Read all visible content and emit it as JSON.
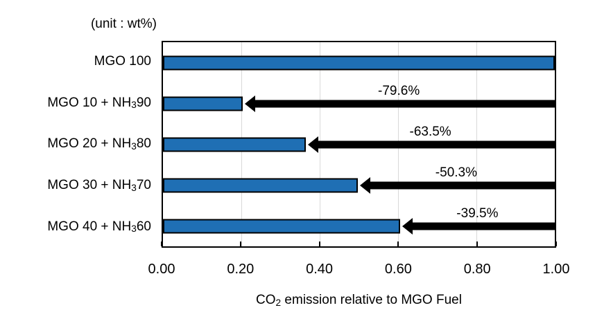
{
  "chart_data": {
    "type": "bar",
    "orientation": "horizontal",
    "unit_note": "(unit : wt%)",
    "title": "",
    "xlabel": "CO₂ emission relative to MGO Fuel",
    "categories": [
      "MGO 100",
      "MGO 10 + NH₃ 90",
      "MGO 20 + NH₃ 80",
      "MGO 30 + NH₃ 70",
      "MGO 40 + NH₃ 60"
    ],
    "values": [
      1.0,
      0.204,
      0.365,
      0.497,
      0.605
    ],
    "reduction_labels": [
      null,
      "-79.6%",
      "-63.5%",
      "-50.3%",
      "-39.5%"
    ],
    "xticks": [
      "0.00",
      "0.20",
      "0.40",
      "0.60",
      "0.80",
      "1.00"
    ],
    "xlim": [
      0,
      1
    ],
    "grid": "vertical",
    "legend": "none",
    "bar_color": "#1f6fb4",
    "bar_border_color": "#000000",
    "arrow_color": "#000000",
    "gridline_color": "#d9d9d9",
    "axis_color": "#000000"
  }
}
